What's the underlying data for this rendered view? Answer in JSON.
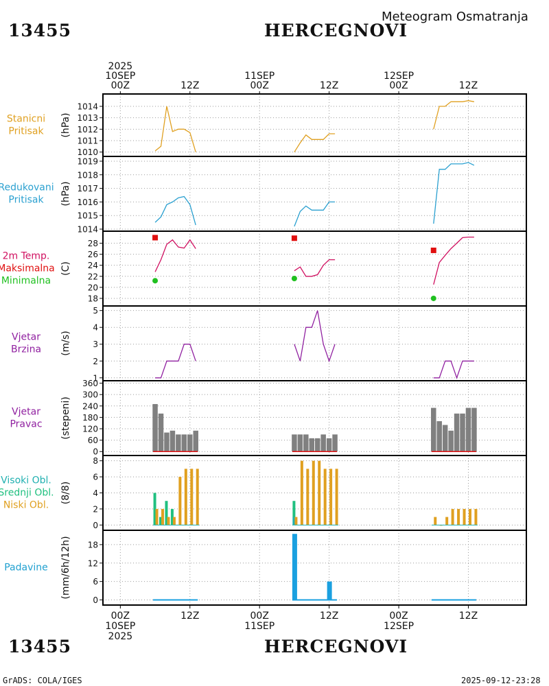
{
  "header": {
    "station_id": "13455",
    "station_name": "HERCEGNOVI",
    "product_title": "Meteogram Osmatranja"
  },
  "footer": {
    "left": "GrADS: COLA/IGES",
    "right": "2025-09-12-23:28"
  },
  "time_axis": {
    "top_ticks": [
      {
        "h": 0,
        "lines": [
          "2025",
          "10SEP",
          "00Z"
        ]
      },
      {
        "h": 12,
        "lines": [
          "12Z"
        ]
      },
      {
        "h": 24,
        "lines": [
          "11SEP",
          "00Z"
        ]
      },
      {
        "h": 36,
        "lines": [
          "12Z"
        ]
      },
      {
        "h": 48,
        "lines": [
          "12SEP",
          "00Z"
        ]
      },
      {
        "h": 60,
        "lines": [
          "12Z"
        ]
      }
    ],
    "bottom_ticks": [
      {
        "h": 0,
        "lines": [
          "00Z",
          "10SEP",
          "2025"
        ]
      },
      {
        "h": 12,
        "lines": [
          "12Z"
        ]
      },
      {
        "h": 24,
        "lines": [
          "00Z",
          "11SEP"
        ]
      },
      {
        "h": 36,
        "lines": [
          "12Z"
        ]
      },
      {
        "h": 48,
        "lines": [
          "00Z",
          "12SEP"
        ]
      },
      {
        "h": 60,
        "lines": [
          "12Z"
        ]
      }
    ],
    "range_hours": [
      -3,
      70
    ]
  },
  "chart_data": [
    {
      "id": "station-pressure",
      "type": "line",
      "labels": [
        {
          "text": "Stanicni",
          "color": "#e0a020"
        },
        {
          "text": "Pritisak",
          "color": "#e0a020"
        }
      ],
      "unit": "(hPa)",
      "ylim": [
        1009.8,
        1014.9
      ],
      "yticks": [
        1010,
        1011,
        1012,
        1013,
        1014
      ],
      "series": [
        {
          "name": "pressure-day1",
          "color": "#e0a020",
          "x": [
            6,
            7,
            8,
            9,
            10,
            11,
            12,
            13
          ],
          "y": [
            1010.1,
            1010.5,
            1014.0,
            1011.8,
            1012.0,
            1012.0,
            1011.7,
            1010.0
          ]
        },
        {
          "name": "pressure-day2",
          "color": "#e0a020",
          "x": [
            30,
            31,
            32,
            33,
            34,
            35,
            36,
            37
          ],
          "y": [
            1010.0,
            1010.8,
            1011.5,
            1011.1,
            1011.1,
            1011.1,
            1011.6,
            1011.6
          ]
        },
        {
          "name": "pressure-day3",
          "color": "#e0a020",
          "x": [
            54,
            55,
            56,
            57,
            58,
            59,
            60,
            61
          ],
          "y": [
            1012.0,
            1014.0,
            1014.0,
            1014.4,
            1014.4,
            1014.4,
            1014.5,
            1014.4
          ]
        }
      ]
    },
    {
      "id": "reduced-pressure",
      "type": "line",
      "labels": [
        {
          "text": "Redukovani",
          "color": "#2aa0d0"
        },
        {
          "text": "Pritisak",
          "color": "#2aa0d0"
        }
      ],
      "unit": "(hPa)",
      "ylim": [
        1014.0,
        1019.2
      ],
      "yticks": [
        1014,
        1015,
        1016,
        1017,
        1018,
        1019
      ],
      "series": [
        {
          "name": "reduced-day1",
          "color": "#2aa0d0",
          "x": [
            6,
            7,
            8,
            9,
            10,
            11,
            12,
            13
          ],
          "y": [
            1014.5,
            1014.9,
            1015.8,
            1016.0,
            1016.3,
            1016.4,
            1015.8,
            1014.3
          ]
        },
        {
          "name": "reduced-day2",
          "color": "#2aa0d0",
          "x": [
            30,
            31,
            32,
            33,
            34,
            35,
            36,
            37
          ],
          "y": [
            1014.2,
            1015.3,
            1015.7,
            1015.4,
            1015.4,
            1015.4,
            1016.0,
            1016.0
          ]
        },
        {
          "name": "reduced-day3",
          "color": "#2aa0d0",
          "x": [
            54,
            55,
            56,
            57,
            58,
            59,
            60,
            61
          ],
          "y": [
            1014.4,
            1018.4,
            1018.4,
            1018.8,
            1018.8,
            1018.8,
            1018.9,
            1018.7
          ]
        }
      ]
    },
    {
      "id": "temperature",
      "type": "line",
      "labels": [
        {
          "text": "2m Temp.",
          "color": "#d01060"
        },
        {
          "text": "Maksimalna",
          "color": "#e01010"
        },
        {
          "text": "Minimalna",
          "color": "#20c020"
        }
      ],
      "unit": "(C)",
      "ylim": [
        17,
        29.8
      ],
      "yticks": [
        18,
        20,
        22,
        24,
        26,
        28
      ],
      "series": [
        {
          "name": "temp-day1",
          "color": "#d01060",
          "x": [
            6,
            7,
            8,
            9,
            10,
            11,
            12,
            13
          ],
          "y": [
            22.8,
            25.0,
            27.8,
            28.6,
            27.3,
            27.1,
            28.6,
            27.0
          ]
        },
        {
          "name": "temp-day2",
          "color": "#d01060",
          "x": [
            30,
            31,
            32,
            33,
            34,
            35,
            36,
            37
          ],
          "y": [
            23.0,
            23.7,
            22.0,
            22.0,
            22.3,
            24.0,
            25.0,
            25.0
          ]
        },
        {
          "name": "temp-day3",
          "color": "#d01060",
          "x": [
            54,
            55,
            56,
            57,
            58,
            59,
            60,
            61
          ],
          "y": [
            20.5,
            24.5,
            25.8,
            27.0,
            28.0,
            29.0,
            29.1,
            29.1
          ]
        }
      ],
      "max_markers": {
        "color": "#e01010",
        "x": [
          6,
          30,
          54
        ],
        "y": [
          29.0,
          28.9,
          26.7
        ]
      },
      "min_markers": {
        "color": "#20c020",
        "x": [
          6,
          30,
          54
        ],
        "y": [
          21.2,
          21.6,
          18.0
        ]
      }
    },
    {
      "id": "wind-speed",
      "type": "line",
      "labels": [
        {
          "text": "Vjetar",
          "color": "#9020a0"
        },
        {
          "text": "Brzina",
          "color": "#9020a0"
        }
      ],
      "unit": "(m/s)",
      "ylim": [
        0.95,
        5.15
      ],
      "yticks": [
        1,
        2,
        3,
        4,
        5
      ],
      "series": [
        {
          "name": "wind-day1",
          "color": "#9020a0",
          "x": [
            6,
            7,
            8,
            9,
            10,
            11,
            12,
            13
          ],
          "y": [
            1,
            1,
            2,
            2,
            2,
            3,
            3,
            2
          ]
        },
        {
          "name": "wind-day2",
          "color": "#9020a0",
          "x": [
            30,
            31,
            32,
            33,
            34,
            35,
            36,
            37
          ],
          "y": [
            3,
            2,
            4,
            4,
            5,
            3,
            2,
            3
          ]
        },
        {
          "name": "wind-day3",
          "color": "#9020a0",
          "x": [
            54,
            55,
            56,
            57,
            58,
            59,
            60,
            61
          ],
          "y": [
            1,
            1,
            2,
            2,
            1,
            2,
            2,
            2
          ]
        }
      ]
    },
    {
      "id": "wind-direction",
      "type": "bar",
      "labels": [
        {
          "text": "Vjetar",
          "color": "#9020a0"
        },
        {
          "text": "Pravac",
          "color": "#9020a0"
        }
      ],
      "unit": "(stepeni)",
      "ylim": [
        -10,
        362
      ],
      "yticks": [
        0,
        60,
        120,
        180,
        240,
        300,
        360
      ],
      "bar_color": "#808080",
      "x": [
        6,
        7,
        8,
        9,
        10,
        11,
        12,
        13,
        30,
        31,
        32,
        33,
        34,
        35,
        36,
        37,
        54,
        55,
        56,
        57,
        58,
        59,
        60,
        61
      ],
      "values": [
        250,
        200,
        100,
        110,
        90,
        90,
        90,
        110,
        90,
        90,
        90,
        70,
        70,
        90,
        70,
        90,
        230,
        160,
        140,
        110,
        200,
        200,
        230,
        230
      ],
      "baseline_color": "#e01010"
    },
    {
      "id": "cloud-cover",
      "type": "bar",
      "labels": [
        {
          "text": "Visoki Obl.",
          "color": "#20b0b0"
        },
        {
          "text": "Srednji Obl.",
          "color": "#20c080"
        },
        {
          "text": "Niski Obl.",
          "color": "#e0a020"
        }
      ],
      "unit": "(8/8)",
      "ylim": [
        -0.4,
        8.4
      ],
      "yticks": [
        0,
        2,
        4,
        6,
        8
      ],
      "series": [
        {
          "name": "Visoki Obl.",
          "color": "#20b0b0",
          "x": [
            6,
            30
          ],
          "values": [
            0,
            1
          ]
        },
        {
          "name": "Srednji Obl.",
          "color": "#20c080",
          "x": [
            6,
            7,
            8,
            9,
            30
          ],
          "values": [
            4,
            1,
            3,
            2,
            3
          ]
        },
        {
          "name": "Niski Obl.",
          "color": "#e0a020",
          "x": [
            6,
            7,
            8,
            9,
            10,
            11,
            12,
            13,
            30,
            31,
            32,
            33,
            34,
            35,
            36,
            37,
            54,
            55,
            56,
            57,
            58,
            59,
            60,
            61
          ],
          "values": [
            2,
            2,
            1,
            1,
            6,
            7,
            7,
            7,
            1,
            8,
            7,
            8,
            8,
            7,
            7,
            7,
            1,
            0,
            1,
            2,
            2,
            2,
            2,
            2
          ]
        }
      ]
    },
    {
      "id": "precipitation",
      "type": "bar",
      "labels": [
        {
          "text": "Padavine",
          "color": "#20a0d0"
        }
      ],
      "unit": "(mm/6h/12h)",
      "ylim": [
        -1.0,
        22.0
      ],
      "yticks": [
        0,
        6,
        12,
        18
      ],
      "bar_color": "#1aa0e0",
      "x": [
        30,
        36
      ],
      "values": [
        21.5,
        6.0
      ],
      "zero_segments": [
        [
          6,
          13
        ],
        [
          30,
          37
        ],
        [
          54,
          61
        ]
      ]
    }
  ]
}
